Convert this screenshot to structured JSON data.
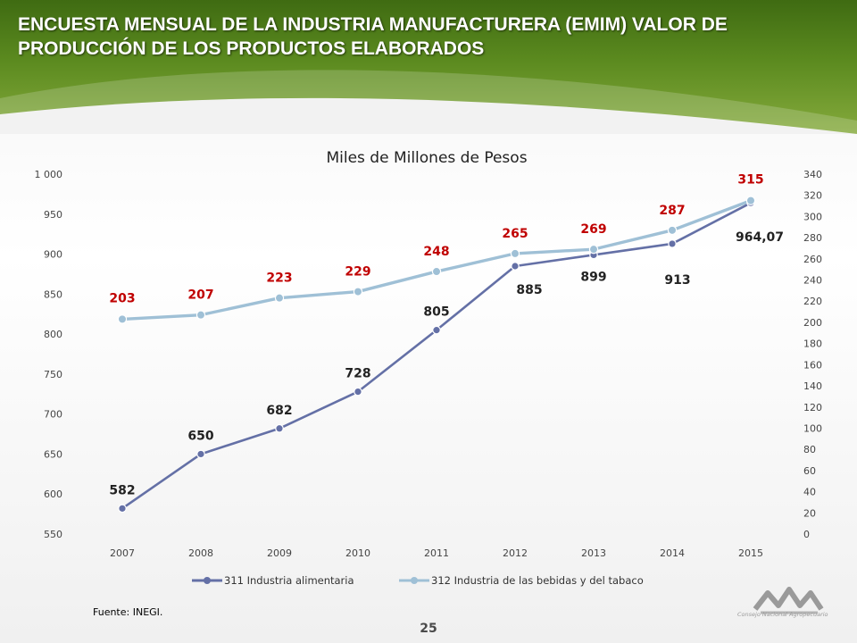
{
  "header": {
    "title": "ENCUESTA MENSUAL DE LA INDUSTRIA  MANUFACTURERA (EMIM) VALOR DE PRODUCCIÓN DE LOS PRODUCTOS ELABORADOS"
  },
  "footer": {
    "source": "Fuente: INEGI.",
    "page_number": "25",
    "logo_text": "Consejo Nacional Agropecuario"
  },
  "colors": {
    "header_green": "#4f7d18",
    "series1": "#6470a6",
    "series2": "#9fc0d6",
    "label_red": "#c00000"
  },
  "chart_data": {
    "type": "line",
    "title": "Miles de Millones de Pesos",
    "x": [
      "2007",
      "2008",
      "2009",
      "2010",
      "2011",
      "2012",
      "2013",
      "2014",
      "2015"
    ],
    "left_axis": {
      "min": 550,
      "max": 1000,
      "ticks": [
        "550",
        "600",
        "650",
        "700",
        "750",
        "800",
        "850",
        "900",
        "950",
        "1 000"
      ]
    },
    "right_axis": {
      "min": 0,
      "max": 340,
      "ticks": [
        "0",
        "20",
        "40",
        "60",
        "80",
        "100",
        "120",
        "140",
        "160",
        "180",
        "200",
        "220",
        "240",
        "260",
        "280",
        "300",
        "320",
        "340"
      ]
    },
    "grid": false,
    "legend_position": "bottom",
    "series": [
      {
        "name": "311 Industria alimentaria",
        "axis": "left",
        "color": "#6470a6",
        "values": [
          582,
          650,
          682,
          728,
          805,
          885,
          899,
          913,
          964.07
        ],
        "labels": [
          "582",
          "650",
          "682",
          "728",
          "805",
          "885",
          "899",
          "913",
          "964,07"
        ]
      },
      {
        "name": "312 Industria de las bebidas y del tabaco",
        "axis": "right",
        "color": "#9fc0d6",
        "values": [
          203,
          207,
          223,
          229,
          248,
          265,
          269,
          287,
          315
        ],
        "labels": [
          "203",
          "207",
          "223",
          "229",
          "248",
          "265",
          "269",
          "287",
          "315"
        ]
      }
    ]
  }
}
